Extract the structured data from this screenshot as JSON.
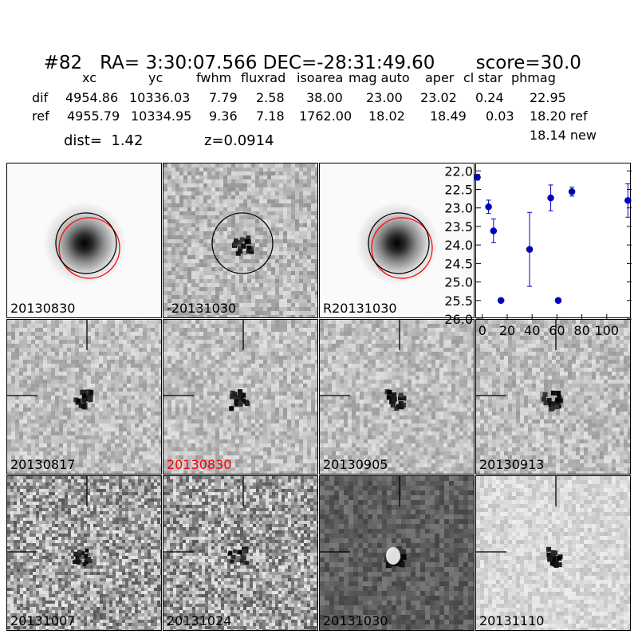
{
  "title": {
    "id": "#82",
    "coords": "RA= 3:30:07.566 DEC=-28:31:49.60",
    "score": "score=30.0"
  },
  "table": {
    "headers": [
      "xc",
      "yc",
      "fwhm",
      "fluxrad",
      "isoarea",
      "mag auto",
      "aper",
      "cl star",
      "phmag"
    ],
    "rows": [
      {
        "label": "dif",
        "values": [
          "4954.86",
          "10336.03",
          "7.79",
          "2.58",
          "38.00",
          "23.00",
          "23.02",
          "0.24",
          "22.95"
        ]
      },
      {
        "label": "ref",
        "values": [
          "4955.79",
          "10334.95",
          "9.36",
          "7.18",
          "1762.00",
          "18.02",
          "18.49",
          "0.03",
          "18.20 ref"
        ]
      }
    ],
    "extra_phmag": "18.14 new"
  },
  "dist_text": "dist=  1.42",
  "z_text": "z=0.0914",
  "panels": [
    {
      "label": "20130830",
      "style": "ref-galaxy"
    },
    {
      "label": "-20131030",
      "style": "diff-circle"
    },
    {
      "label": "R20131030",
      "style": "ref-galaxy"
    },
    {
      "label": "20130817",
      "style": "diff"
    },
    {
      "label": "20130830",
      "style": "diff",
      "highlight": "#ff0000"
    },
    {
      "label": "20130905",
      "style": "diff"
    },
    {
      "label": "20130913",
      "style": "diff"
    },
    {
      "label": "20131007",
      "style": "diff-noisy"
    },
    {
      "label": "20131024",
      "style": "diff-noisy"
    },
    {
      "label": "20131030",
      "style": "diff-dark"
    },
    {
      "label": "20131110",
      "style": "diff-light"
    }
  ],
  "chart_data": {
    "type": "scatter",
    "title": "",
    "xlabel": "",
    "ylabel": "",
    "xlim": [
      -5,
      120
    ],
    "ylim": [
      26.0,
      21.8
    ],
    "y_inverted": true,
    "x_ticks": [
      0,
      20,
      40,
      60,
      80,
      100
    ],
    "y_ticks": [
      22.0,
      22.5,
      23.0,
      23.5,
      24.0,
      24.5,
      25.0,
      25.5,
      26.0
    ],
    "y_tick_labels": [
      "22.0",
      "22.5",
      "23.0",
      "23.5",
      "24.0",
      "24.5",
      "25.0",
      "25.5",
      "26.0"
    ],
    "marker_color": "#0000cc",
    "points": [
      {
        "x": -4,
        "y": 22.17,
        "err": 0.08
      },
      {
        "x": 5,
        "y": 22.97,
        "err": 0.18
      },
      {
        "x": 9,
        "y": 23.62,
        "err": 0.32
      },
      {
        "x": 15,
        "y": 25.5,
        "err": 0.06
      },
      {
        "x": 38,
        "y": 24.12,
        "err": 1.0
      },
      {
        "x": 55,
        "y": 22.73,
        "err": 0.35
      },
      {
        "x": 61,
        "y": 25.5,
        "err": 0.06
      },
      {
        "x": 72,
        "y": 22.56,
        "err": 0.12
      },
      {
        "x": 117,
        "y": 22.8,
        "err": 0.45
      }
    ]
  }
}
